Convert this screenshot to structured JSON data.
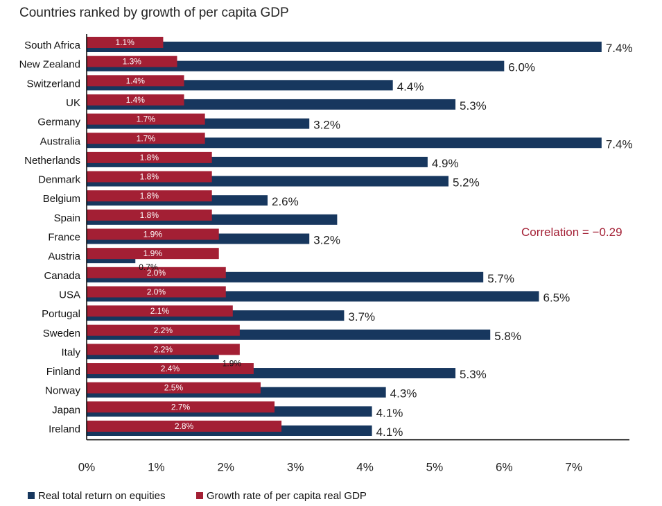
{
  "chart_data": {
    "type": "bar",
    "orientation": "horizontal",
    "title": "Countries ranked by growth of per capita GDP",
    "categories": [
      "South Africa",
      "New Zealand",
      "Switzerland",
      "UK",
      "Germany",
      "Australia",
      "Netherlands",
      "Denmark",
      "Belgium",
      "Spain",
      "France",
      "Austria",
      "Canada",
      "USA",
      "Portugal",
      "Sweden",
      "Italy",
      "Finland",
      "Norway",
      "Japan",
      "Ireland"
    ],
    "series": [
      {
        "name": "Real total return on equities",
        "color": "#17375e",
        "values": [
          7.4,
          6.0,
          4.4,
          5.3,
          3.2,
          7.4,
          4.9,
          5.2,
          2.6,
          3.6,
          3.2,
          0.7,
          5.7,
          6.5,
          3.7,
          5.8,
          1.9,
          5.3,
          4.3,
          4.1,
          4.1
        ],
        "labels": [
          "7.4%",
          "6.0%",
          "4.4%",
          "5.3%",
          "3.2%",
          "7.4%",
          "4.9%",
          "5.2%",
          "2.6%",
          "",
          "3.2%",
          "0.7%",
          "5.7%",
          "6.5%",
          "3.7%",
          "5.8%",
          "1.9%",
          "5.3%",
          "4.3%",
          "4.1%",
          "4.1%"
        ]
      },
      {
        "name": "Growth rate of per capita real GDP",
        "color": "#a31f34",
        "values": [
          1.1,
          1.3,
          1.4,
          1.4,
          1.7,
          1.7,
          1.8,
          1.8,
          1.8,
          1.8,
          1.9,
          1.9,
          2.0,
          2.0,
          2.1,
          2.2,
          2.2,
          2.4,
          2.5,
          2.7,
          2.8
        ],
        "labels": [
          "1.1%",
          "1.3%",
          "1.4%",
          "1.4%",
          "1.7%",
          "1.7%",
          "1.8%",
          "1.8%",
          "1.8%",
          "1.8%",
          "1.9%",
          "1.9%",
          "2.0%",
          "2.0%",
          "2.1%",
          "2.2%",
          "2.2%",
          "2.4%",
          "2.5%",
          "2.7%",
          "2.8%"
        ]
      }
    ],
    "xlim": [
      0,
      7.8
    ],
    "xticks": [
      0,
      1,
      2,
      3,
      4,
      5,
      6,
      7
    ],
    "xtick_labels": [
      "0%",
      "1%",
      "2%",
      "3%",
      "4%",
      "5%",
      "6%",
      "7%"
    ],
    "annotation": {
      "text": "Correlation = −0.29",
      "color": "#a31f34"
    },
    "legend": {
      "placement": "bottom-left"
    },
    "grid": false
  }
}
